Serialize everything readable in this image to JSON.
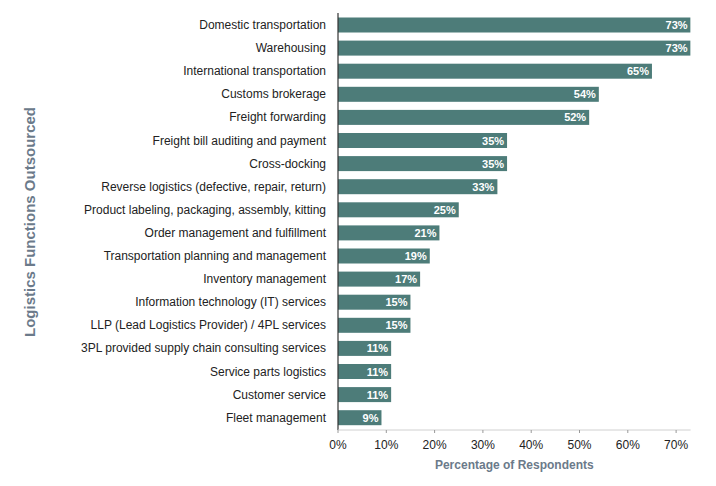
{
  "chart_data": {
    "type": "bar",
    "orientation": "horizontal",
    "categories": [
      "Domestic transportation",
      "Warehousing",
      "International transportation",
      "Customs brokerage",
      "Freight forwarding",
      "Freight bill auditing and payment",
      "Cross-docking",
      "Reverse logistics (defective, repair, return)",
      "Product labeling, packaging, assembly, kitting",
      "Order management and fulfillment",
      "Transportation planning and management",
      "Inventory management",
      "Information technology (IT) services",
      "LLP (Lead Logistics Provider) / 4PL services",
      "3PL provided supply chain consulting services",
      "Service parts logistics",
      "Customer service",
      "Fleet management"
    ],
    "values": [
      73,
      73,
      65,
      54,
      52,
      35,
      35,
      33,
      25,
      21,
      19,
      17,
      15,
      15,
      11,
      11,
      11,
      9
    ],
    "value_labels": [
      "73%",
      "73%",
      "65%",
      "54%",
      "52%",
      "35%",
      "35%",
      "33%",
      "25%",
      "21%",
      "19%",
      "17%",
      "15%",
      "15%",
      "11%",
      "11%",
      "11%",
      "9%"
    ],
    "color": "#4d7c79",
    "x_label": "Percentage of Respondents",
    "y_label": "Logistics Functions Outsourced",
    "xlim": [
      0,
      73
    ],
    "xticks": [
      {
        "value": 0,
        "label": "0%"
      },
      {
        "value": 10,
        "label": "10%"
      },
      {
        "value": 20,
        "label": "20%"
      },
      {
        "value": 30,
        "label": "30%"
      },
      {
        "value": 40,
        "label": "40%"
      },
      {
        "value": 50,
        "label": "50%"
      },
      {
        "value": 60,
        "label": "60%"
      },
      {
        "value": 70,
        "label": "70%"
      }
    ],
    "grid": false,
    "data_labels": true
  }
}
